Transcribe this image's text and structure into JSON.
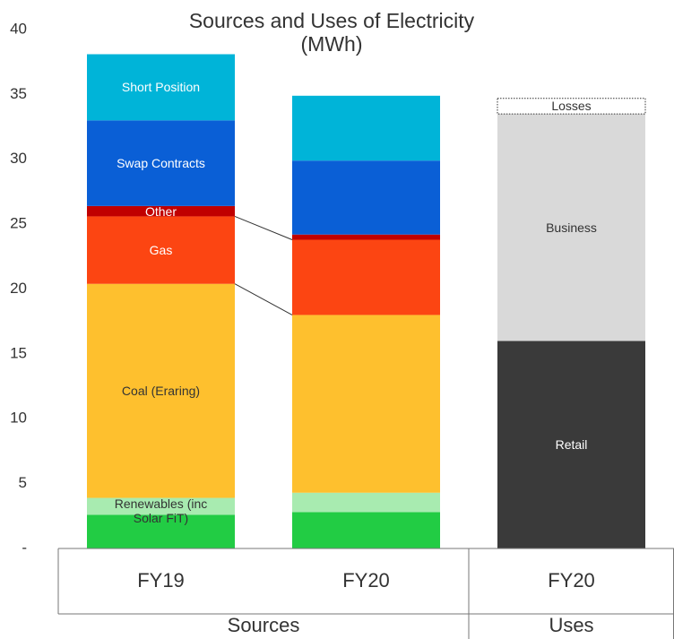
{
  "chart_data": {
    "type": "stacked_bar",
    "title": "Sources and Uses of Electricity (MWh)",
    "categories": [
      "FY19",
      "FY20",
      "FY20"
    ],
    "groups": [
      {
        "name": "Sources",
        "span": 2
      },
      {
        "name": "Uses",
        "span": 1
      }
    ],
    "series": [
      {
        "name": null,
        "color": "#22cc44",
        "values": [
          2.6,
          2.8,
          null
        ]
      },
      {
        "name": "Renewables (inc Solar FiT)",
        "color": "#a8ebb0",
        "values": [
          1.3,
          1.5,
          null
        ]
      },
      {
        "name": "Coal (Eraring)",
        "color": "#fec02e",
        "values": [
          16.5,
          13.7,
          null
        ]
      },
      {
        "name": "Gas",
        "color": "#fc4512",
        "values": [
          5.2,
          5.8,
          null
        ]
      },
      {
        "name": "Other",
        "color": "#c00000",
        "values": [
          0.8,
          0.4,
          null
        ]
      },
      {
        "name": "Swap Contracts",
        "color": "#0a5fd6",
        "values": [
          6.6,
          5.7,
          null
        ]
      },
      {
        "name": "Short Position",
        "color": "#00b4d8",
        "values": [
          5.1,
          5.0,
          null
        ]
      },
      {
        "name": "Retail",
        "color": "#3a3a3a",
        "values": [
          null,
          null,
          16.0
        ]
      },
      {
        "name": "Business",
        "color": "#d9d9d9",
        "values": [
          null,
          null,
          17.5
        ]
      },
      {
        "name": "Losses",
        "color": "#ffffff",
        "values": [
          null,
          null,
          1.2
        ]
      }
    ],
    "ylim": [
      0,
      40
    ],
    "yticks": [
      {
        "value": 0,
        "label": "-"
      },
      5,
      10,
      15,
      20,
      25,
      30,
      35,
      40
    ],
    "grid": false
  }
}
